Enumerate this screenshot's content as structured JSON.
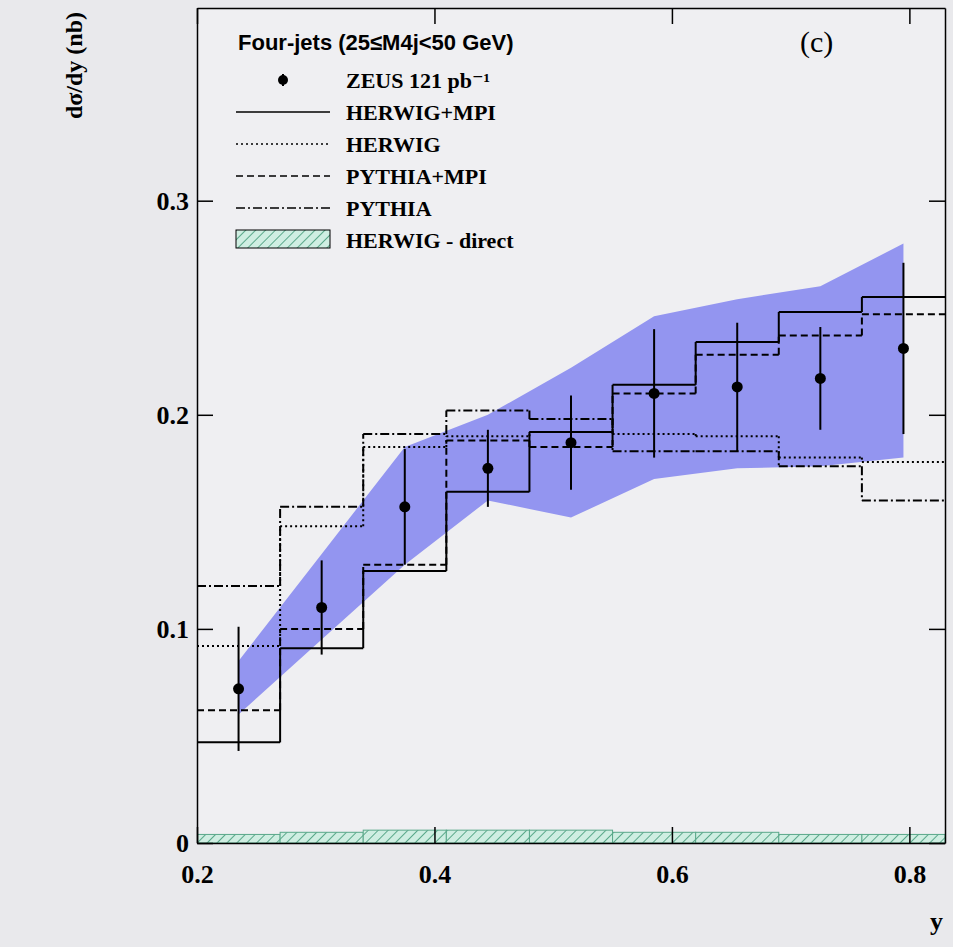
{
  "chart_data": {
    "type": "step",
    "title": "Four-jets (25≤M4j<50 GeV)",
    "annotations": [
      "(c)"
    ],
    "x_label": "y",
    "y_label": "dσ/dy (nb)",
    "xlim": [
      0.2,
      0.83
    ],
    "ylim": [
      0,
      0.39
    ],
    "xticks": [
      0.2,
      0.4,
      0.6,
      0.8
    ],
    "yticks": [
      0,
      0.1,
      0.2,
      0.3
    ],
    "legend": "upper left",
    "bins": [
      0.2,
      0.27,
      0.34,
      0.41,
      0.48,
      0.55,
      0.62,
      0.69,
      0.76,
      0.83
    ],
    "x": [
      0.235,
      0.305,
      0.375,
      0.445,
      0.515,
      0.585,
      0.655,
      0.725,
      0.795
    ],
    "band": {
      "color": "#9395f0",
      "low": [
        0.06,
        0.095,
        0.13,
        0.16,
        0.152,
        0.17,
        0.175,
        0.176,
        0.18
      ],
      "high": [
        0.085,
        0.135,
        0.185,
        0.2,
        0.222,
        0.246,
        0.254,
        0.26,
        0.28
      ]
    },
    "series": [
      {
        "name": "ZEUS 121 pb⁻¹",
        "type": "scatter",
        "marker": "circle",
        "color": "#000000",
        "values": [
          0.072,
          0.11,
          0.157,
          0.175,
          0.187,
          0.21,
          0.213,
          0.217,
          0.231
        ],
        "errors": [
          0.029,
          0.022,
          0.027,
          0.018,
          0.022,
          0.03,
          0.03,
          0.024,
          0.04
        ]
      },
      {
        "name": "HERWIG+MPI",
        "type": "step",
        "line_style": "solid",
        "color": "#000000",
        "values": [
          0.047,
          0.091,
          0.127,
          0.164,
          0.192,
          0.214,
          0.234,
          0.248,
          0.255
        ]
      },
      {
        "name": "HERWIG",
        "type": "step",
        "line_style": "dotted",
        "color": "#000000",
        "values": [
          0.092,
          0.148,
          0.185,
          0.19,
          0.192,
          0.191,
          0.19,
          0.18,
          0.178
        ]
      },
      {
        "name": "PYTHIA+MPI",
        "type": "step",
        "line_style": "dashed",
        "color": "#000000",
        "values": [
          0.062,
          0.1,
          0.13,
          0.188,
          0.185,
          0.21,
          0.228,
          0.237,
          0.247
        ]
      },
      {
        "name": "PYTHIA",
        "type": "step",
        "line_style": "dashdot",
        "color": "#000000",
        "values": [
          0.12,
          0.157,
          0.191,
          0.202,
          0.198,
          0.183,
          0.183,
          0.176,
          0.16
        ]
      },
      {
        "name": "HERWIG - direct",
        "type": "hatched_bar",
        "color": "#5aa88a",
        "values": [
          0.004,
          0.005,
          0.006,
          0.006,
          0.006,
          0.005,
          0.005,
          0.004,
          0.004
        ]
      }
    ]
  }
}
